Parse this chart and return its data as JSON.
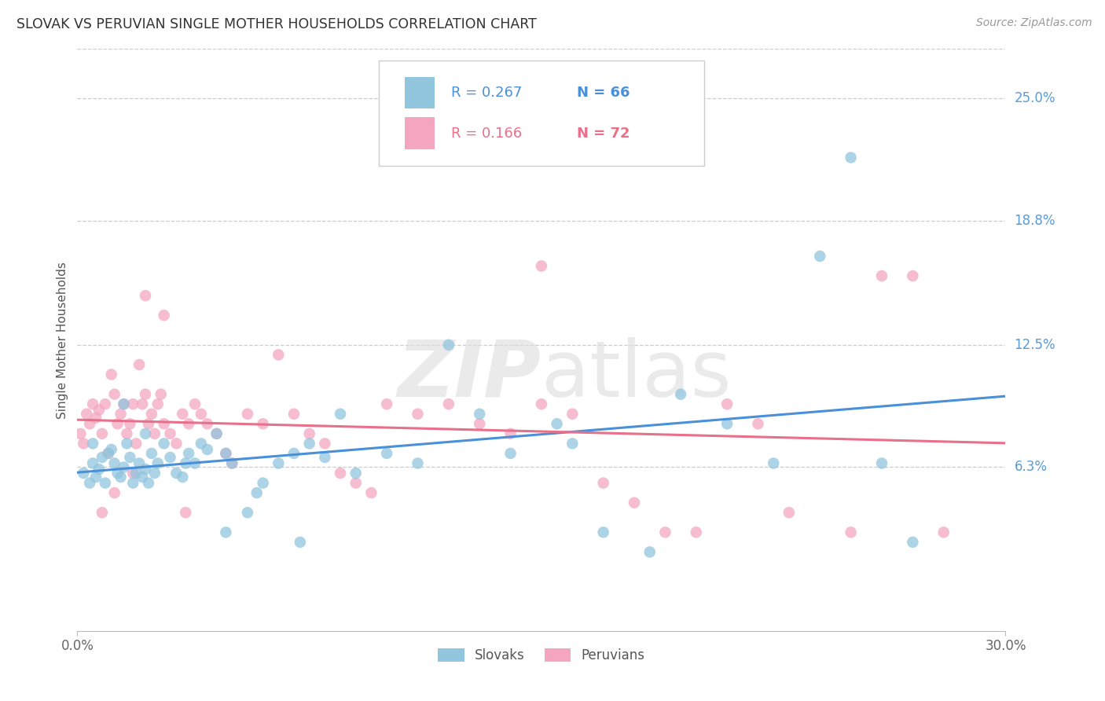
{
  "title": "SLOVAK VS PERUVIAN SINGLE MOTHER HOUSEHOLDS CORRELATION CHART",
  "source": "Source: ZipAtlas.com",
  "ylabel": "Single Mother Households",
  "ytick_labels": [
    "25.0%",
    "18.8%",
    "12.5%",
    "6.3%"
  ],
  "ytick_values": [
    0.25,
    0.188,
    0.125,
    0.063
  ],
  "xmin": 0.0,
  "xmax": 0.3,
  "ymin": -0.02,
  "ymax": 0.275,
  "legend_r_slovak": "R = 0.267",
  "legend_n_slovak": "N = 66",
  "legend_r_peruvian": "R = 0.166",
  "legend_n_peruvian": "N = 72",
  "slovak_color": "#92c5de",
  "peruvian_color": "#f4a6c0",
  "slovak_line_color": "#4a90d9",
  "peruvian_line_color": "#e8708a",
  "right_label_color": "#5b9bd5",
  "watermark": "ZIPatlas",
  "slovak_x": [
    0.002,
    0.004,
    0.005,
    0.006,
    0.007,
    0.008,
    0.009,
    0.01,
    0.011,
    0.012,
    0.013,
    0.014,
    0.015,
    0.016,
    0.017,
    0.018,
    0.019,
    0.02,
    0.021,
    0.022,
    0.023,
    0.024,
    0.025,
    0.026,
    0.028,
    0.03,
    0.032,
    0.034,
    0.036,
    0.038,
    0.04,
    0.042,
    0.045,
    0.048,
    0.05,
    0.055,
    0.058,
    0.06,
    0.065,
    0.07,
    0.075,
    0.08,
    0.085,
    0.09,
    0.1,
    0.11,
    0.12,
    0.13,
    0.14,
    0.155,
    0.16,
    0.17,
    0.185,
    0.195,
    0.21,
    0.225,
    0.24,
    0.25,
    0.26,
    0.27,
    0.005,
    0.015,
    0.022,
    0.035,
    0.048,
    0.072
  ],
  "slovak_y": [
    0.06,
    0.055,
    0.065,
    0.058,
    0.062,
    0.068,
    0.055,
    0.07,
    0.072,
    0.065,
    0.06,
    0.058,
    0.063,
    0.075,
    0.068,
    0.055,
    0.06,
    0.065,
    0.058,
    0.062,
    0.055,
    0.07,
    0.06,
    0.065,
    0.075,
    0.068,
    0.06,
    0.058,
    0.07,
    0.065,
    0.075,
    0.072,
    0.08,
    0.07,
    0.065,
    0.04,
    0.05,
    0.055,
    0.065,
    0.07,
    0.075,
    0.068,
    0.09,
    0.06,
    0.07,
    0.065,
    0.125,
    0.09,
    0.07,
    0.085,
    0.075,
    0.03,
    0.02,
    0.1,
    0.085,
    0.065,
    0.17,
    0.22,
    0.065,
    0.025,
    0.075,
    0.095,
    0.08,
    0.065,
    0.03,
    0.025
  ],
  "peruvian_x": [
    0.001,
    0.002,
    0.003,
    0.004,
    0.005,
    0.006,
    0.007,
    0.008,
    0.009,
    0.01,
    0.011,
    0.012,
    0.013,
    0.014,
    0.015,
    0.016,
    0.017,
    0.018,
    0.019,
    0.02,
    0.021,
    0.022,
    0.023,
    0.024,
    0.025,
    0.026,
    0.027,
    0.028,
    0.03,
    0.032,
    0.034,
    0.036,
    0.038,
    0.04,
    0.042,
    0.045,
    0.048,
    0.05,
    0.055,
    0.06,
    0.065,
    0.07,
    0.075,
    0.08,
    0.085,
    0.09,
    0.095,
    0.1,
    0.11,
    0.12,
    0.13,
    0.14,
    0.15,
    0.16,
    0.17,
    0.18,
    0.19,
    0.2,
    0.21,
    0.22,
    0.23,
    0.25,
    0.27,
    0.28,
    0.008,
    0.012,
    0.018,
    0.022,
    0.028,
    0.035,
    0.15,
    0.26
  ],
  "peruvian_y": [
    0.08,
    0.075,
    0.09,
    0.085,
    0.095,
    0.088,
    0.092,
    0.08,
    0.095,
    0.07,
    0.11,
    0.1,
    0.085,
    0.09,
    0.095,
    0.08,
    0.085,
    0.095,
    0.075,
    0.115,
    0.095,
    0.1,
    0.085,
    0.09,
    0.08,
    0.095,
    0.1,
    0.085,
    0.08,
    0.075,
    0.09,
    0.085,
    0.095,
    0.09,
    0.085,
    0.08,
    0.07,
    0.065,
    0.09,
    0.085,
    0.12,
    0.09,
    0.08,
    0.075,
    0.06,
    0.055,
    0.05,
    0.095,
    0.09,
    0.095,
    0.085,
    0.08,
    0.095,
    0.09,
    0.055,
    0.045,
    0.03,
    0.03,
    0.095,
    0.085,
    0.04,
    0.03,
    0.16,
    0.03,
    0.04,
    0.05,
    0.06,
    0.15,
    0.14,
    0.04,
    0.165,
    0.16
  ]
}
